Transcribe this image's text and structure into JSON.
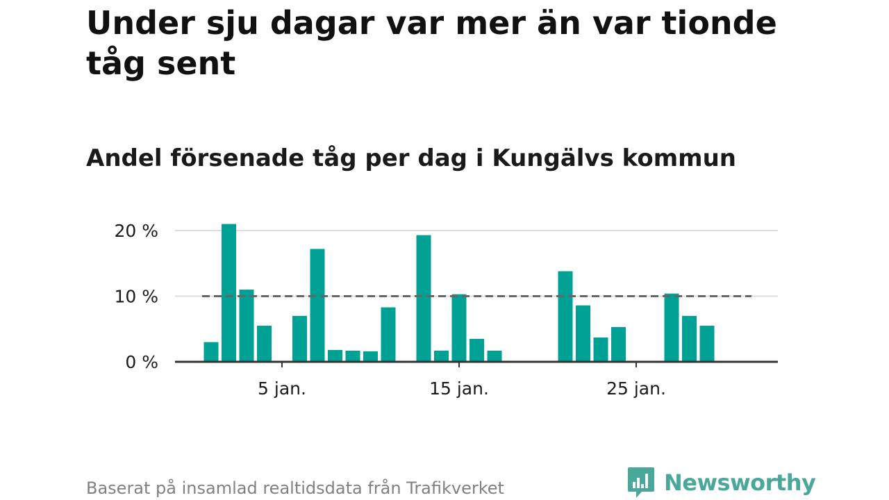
{
  "title": "Under sju dagar var mer än var tionde tåg sent",
  "subtitle": "Andel försenade tåg per dag i Kungälvs kommun",
  "source": "Baserat på insamlad realtidsdata från Trafikverket",
  "logo": {
    "text": "Newsworthy",
    "icon": "newsworthy-chart-icon",
    "color": "#4aa89a"
  },
  "colors": {
    "bar": "#00a195",
    "reference_line": "#666666",
    "grid": "#dddddd",
    "axis": "#333333",
    "text": "#1a1a1a"
  },
  "chart_data": {
    "type": "bar",
    "x": [
      1,
      2,
      3,
      4,
      5,
      6,
      7,
      8,
      9,
      10,
      11,
      12,
      13,
      14,
      15,
      16,
      17,
      18,
      19,
      20,
      21,
      22,
      23,
      24,
      25,
      26,
      27,
      28,
      29,
      30,
      31
    ],
    "values": [
      3,
      21,
      11,
      5.5,
      0,
      7,
      17.2,
      1.8,
      1.7,
      1.6,
      8.3,
      0,
      19.3,
      1.7,
      10.3,
      3.5,
      1.7,
      0,
      0,
      0,
      13.8,
      8.6,
      3.7,
      5.3,
      0,
      0,
      10.4,
      7,
      5.5,
      0,
      0
    ],
    "xticks": [
      5,
      15,
      25
    ],
    "xtick_labels": [
      "5 jan.",
      "15 jan.",
      "25 jan."
    ],
    "ylim": [
      0,
      22
    ],
    "yticks": [
      0,
      10,
      20
    ],
    "ytick_labels": [
      "0 %",
      "10 %",
      "20 %"
    ],
    "reference_line": 10,
    "grid": true,
    "xlabel": "",
    "ylabel": ""
  }
}
